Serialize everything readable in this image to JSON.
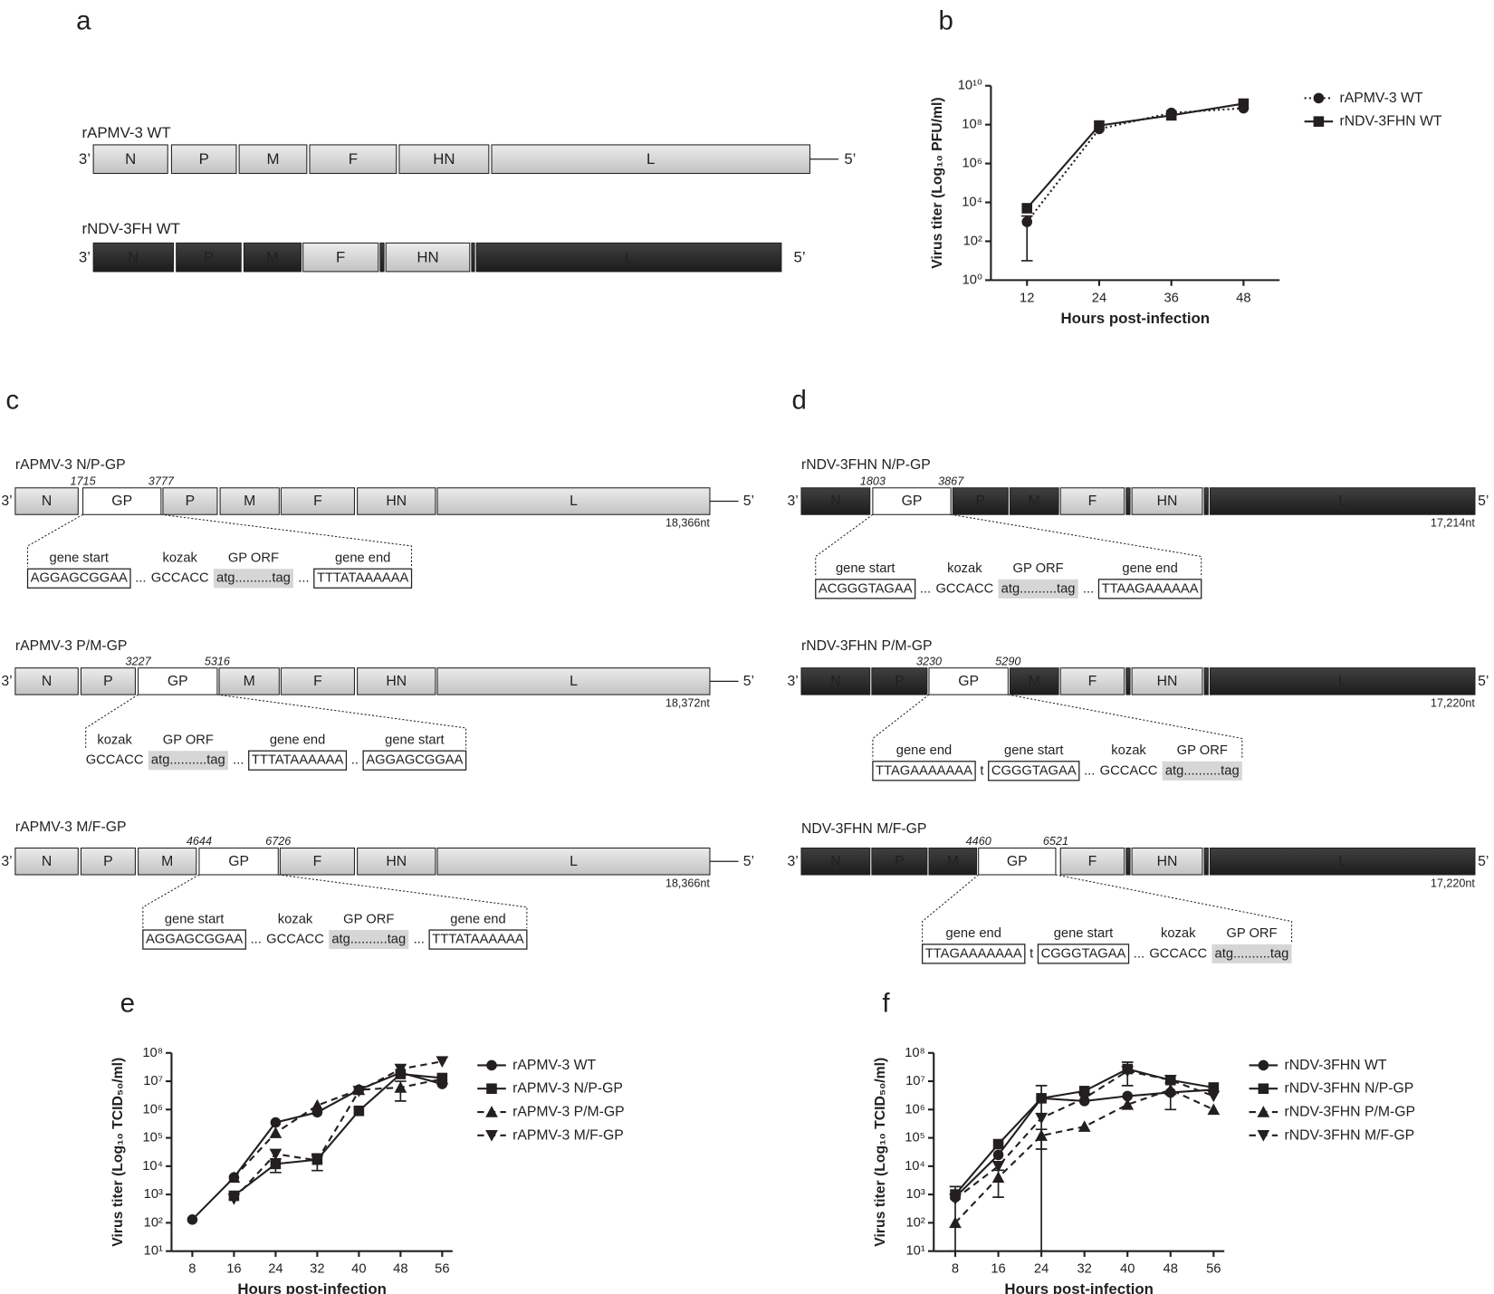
{
  "panels": [
    "a",
    "b",
    "c",
    "d",
    "e",
    "f"
  ],
  "genomes": [
    {
      "title": "rAPMV-3 WT",
      "ends": [
        "3’",
        "5’"
      ],
      "segments": [
        {
          "label": "N",
          "shade": "light"
        },
        {
          "label": "P",
          "shade": "light"
        },
        {
          "label": "M",
          "shade": "light"
        },
        {
          "label": "F",
          "shade": "light"
        },
        {
          "label": "HN",
          "shade": "light"
        },
        {
          "label": "L",
          "shade": "light"
        }
      ]
    },
    {
      "title": "rNDV-3FH WT",
      "ends": [
        "3’",
        "5’"
      ],
      "segments": [
        {
          "label": "N",
          "shade": "dark"
        },
        {
          "label": "P",
          "shade": "dark"
        },
        {
          "label": "M",
          "shade": "dark"
        },
        {
          "label": "F",
          "shade": "light"
        },
        {
          "shade": "junction"
        },
        {
          "label": "HN",
          "shade": "light"
        },
        {
          "shade": "junction"
        },
        {
          "label": "L",
          "shade": "dark"
        }
      ]
    },
    {
      "title": "rAPMV-3 N/P-GP",
      "ends": [
        "3’",
        "5’"
      ],
      "positions": [
        1715,
        3777
      ],
      "length": "18,366nt",
      "segments": [
        {
          "label": "N",
          "shade": "light"
        },
        {
          "label": "GP",
          "shade": "white"
        },
        {
          "label": "P",
          "shade": "light"
        },
        {
          "label": "M",
          "shade": "light"
        },
        {
          "label": "F",
          "shade": "light"
        },
        {
          "label": "HN",
          "shade": "light"
        },
        {
          "label": "L",
          "shade": "light"
        }
      ],
      "callout": [
        {
          "label": "gene start",
          "text": "AGGAGCGGAA",
          "style": "box"
        },
        {
          "text": "...",
          "style": "plain"
        },
        {
          "label": "kozak",
          "text": "GCCACC",
          "style": "plain"
        },
        {
          "label": "GP ORF",
          "text": "atg..........tag",
          "style": "shade"
        },
        {
          "text": "...",
          "style": "plain"
        },
        {
          "label": "gene end",
          "text": "TTTATAAAAAA",
          "style": "box"
        }
      ]
    },
    {
      "title": "rAPMV-3 P/M-GP",
      "ends": [
        "3’",
        "5’"
      ],
      "positions": [
        3227,
        5316
      ],
      "length": "18,372nt",
      "segments": [
        {
          "label": "N",
          "shade": "light"
        },
        {
          "label": "P",
          "shade": "light"
        },
        {
          "label": "GP",
          "shade": "white"
        },
        {
          "label": "M",
          "shade": "light"
        },
        {
          "label": "F",
          "shade": "light"
        },
        {
          "label": "HN",
          "shade": "light"
        },
        {
          "label": "L",
          "shade": "light"
        }
      ],
      "callout": [
        {
          "label": "kozak",
          "text": "GCCACC",
          "style": "plain"
        },
        {
          "label": "GP ORF",
          "text": "atg..........tag",
          "style": "shade"
        },
        {
          "text": "...",
          "style": "plain"
        },
        {
          "label": "gene end",
          "text": "TTTATAAAAAA",
          "style": "box"
        },
        {
          "text": "..",
          "style": "plain"
        },
        {
          "label": "gene start",
          "text": "AGGAGCGGAA",
          "style": "box"
        }
      ]
    },
    {
      "title": "rAPMV-3 M/F-GP",
      "ends": [
        "3’",
        "5’"
      ],
      "positions": [
        4644,
        6726
      ],
      "length": "18,366nt",
      "segments": [
        {
          "label": "N",
          "shade": "light"
        },
        {
          "label": "P",
          "shade": "light"
        },
        {
          "label": "M",
          "shade": "light"
        },
        {
          "label": "GP",
          "shade": "white"
        },
        {
          "label": "F",
          "shade": "light"
        },
        {
          "label": "HN",
          "shade": "light"
        },
        {
          "label": "L",
          "shade": "light"
        }
      ],
      "callout": [
        {
          "label": "gene start",
          "text": "AGGAGCGGAA",
          "style": "box"
        },
        {
          "text": "...",
          "style": "plain"
        },
        {
          "label": "kozak",
          "text": "GCCACC",
          "style": "plain"
        },
        {
          "label": "GP ORF",
          "text": "atg..........tag",
          "style": "shade"
        },
        {
          "text": "...",
          "style": "plain"
        },
        {
          "label": "gene end",
          "text": "TTTATAAAAAA",
          "style": "box"
        }
      ]
    },
    {
      "title": "rNDV-3FHN N/P-GP",
      "ends": [
        "3’",
        "5’"
      ],
      "positions": [
        1803,
        3867
      ],
      "length": "17,214nt",
      "segments": [
        {
          "label": "N",
          "shade": "dark"
        },
        {
          "label": "GP",
          "shade": "white"
        },
        {
          "label": "P",
          "shade": "dark"
        },
        {
          "label": "M",
          "shade": "dark"
        },
        {
          "label": "F",
          "shade": "light"
        },
        {
          "shade": "junction"
        },
        {
          "label": "HN",
          "shade": "light"
        },
        {
          "shade": "junction"
        },
        {
          "label": "L",
          "shade": "dark"
        }
      ],
      "callout": [
        {
          "label": "gene start",
          "text": "ACGGGTAGAA",
          "style": "box"
        },
        {
          "text": "...",
          "style": "plain"
        },
        {
          "label": "kozak",
          "text": "GCCACC",
          "style": "plain"
        },
        {
          "label": "GP ORF",
          "text": "atg..........tag",
          "style": "shade"
        },
        {
          "text": "...",
          "style": "plain"
        },
        {
          "label": "gene end",
          "text": "TTAAGAAAAAA",
          "style": "box"
        }
      ]
    },
    {
      "title": "rNDV-3FHN P/M-GP",
      "ends": [
        "3’",
        "5’"
      ],
      "positions": [
        3230,
        5290
      ],
      "length": "17,220nt",
      "segments": [
        {
          "label": "N",
          "shade": "dark"
        },
        {
          "label": "P",
          "shade": "dark"
        },
        {
          "label": "GP",
          "shade": "white"
        },
        {
          "label": "M",
          "shade": "dark"
        },
        {
          "label": "F",
          "shade": "light"
        },
        {
          "shade": "junction"
        },
        {
          "label": "HN",
          "shade": "light"
        },
        {
          "shade": "junction"
        },
        {
          "label": "L",
          "shade": "dark"
        }
      ],
      "callout": [
        {
          "label": "gene end",
          "text": "TTAGAAAAAAA",
          "style": "box"
        },
        {
          "text": "t",
          "style": "plain"
        },
        {
          "label": "gene start",
          "text": "CGGGTAGAA",
          "style": "box"
        },
        {
          "text": "...",
          "style": "plain"
        },
        {
          "label": "kozak",
          "text": "GCCACC",
          "style": "plain"
        },
        {
          "label": "GP ORF",
          "text": "atg..........tag",
          "style": "shade"
        }
      ]
    },
    {
      "title": "NDV-3FHN M/F-GP",
      "ends": [
        "3’",
        "5’"
      ],
      "positions": [
        4460,
        6521
      ],
      "length": "17,220nt",
      "segments": [
        {
          "label": "N",
          "shade": "dark"
        },
        {
          "label": "P",
          "shade": "dark"
        },
        {
          "label": "M",
          "shade": "dark"
        },
        {
          "label": "GP",
          "shade": "white"
        },
        {
          "label": "F",
          "shade": "light"
        },
        {
          "shade": "junction"
        },
        {
          "label": "HN",
          "shade": "light"
        },
        {
          "shade": "junction"
        },
        {
          "label": "L",
          "shade": "dark"
        }
      ],
      "callout": [
        {
          "label": "gene end",
          "text": "TTAGAAAAAAA",
          "style": "box"
        },
        {
          "text": "t",
          "style": "plain"
        },
        {
          "label": "gene start",
          "text": "CGGGTAGAA",
          "style": "box"
        },
        {
          "text": "...",
          "style": "plain"
        },
        {
          "label": "kozak",
          "text": "GCCACC",
          "style": "plain"
        },
        {
          "label": "GP ORF",
          "text": "atg..........tag",
          "style": "shade"
        }
      ]
    }
  ],
  "chart_data": [
    {
      "type": "line",
      "xlabel": "Hours post-infection",
      "ylabel": "Virus titer (Log₁₀ PFU/ml)",
      "x": [
        12,
        24,
        36,
        48
      ],
      "xlim": [
        6,
        54
      ],
      "xticks": [
        12,
        24,
        36,
        48
      ],
      "ylim": [
        1,
        10000000000
      ],
      "log_y": true,
      "yticks": [
        {
          "value": 1,
          "label": "10⁰"
        },
        {
          "value": 100,
          "label": "10²"
        },
        {
          "value": 10000,
          "label": "10⁴"
        },
        {
          "value": 1000000,
          "label": "10⁶"
        },
        {
          "value": 100000000,
          "label": "10⁸"
        },
        {
          "value": 10000000000,
          "label": "10¹⁰"
        }
      ],
      "legend": "right",
      "series": [
        {
          "name": "rAPMV-3 WT",
          "color": "#231f20",
          "marker": "circle",
          "dash": "dotted",
          "values": [
            1000,
            60000000,
            400000000,
            700000000
          ],
          "errors": [
            990,
            null,
            null,
            null
          ]
        },
        {
          "name": "rNDV-3FHN WT",
          "color": "#231f20",
          "marker": "square",
          "dash": "solid",
          "values": [
            5000,
            90000000,
            300000000,
            1200000000
          ]
        }
      ]
    },
    {
      "type": "line",
      "xlabel": "Hours post-infection",
      "ylabel": "Virus titer (Log₁₀ TCID₅₀/ml)",
      "x": [
        8,
        16,
        24,
        32,
        40,
        48,
        56
      ],
      "xlim": [
        4,
        58
      ],
      "xticks": [
        8,
        16,
        24,
        32,
        40,
        48,
        56
      ],
      "ylim": [
        10,
        100000000
      ],
      "log_y": true,
      "yticks": [
        {
          "value": 10,
          "label": "10¹"
        },
        {
          "value": 100,
          "label": "10²"
        },
        {
          "value": 1000,
          "label": "10³"
        },
        {
          "value": 10000,
          "label": "10⁴"
        },
        {
          "value": 100000,
          "label": "10⁵"
        },
        {
          "value": 1000000,
          "label": "10⁶"
        },
        {
          "value": 10000000,
          "label": "10⁷"
        },
        {
          "value": 100000000,
          "label": "10⁸"
        }
      ],
      "legend": "right",
      "series": [
        {
          "name": "rAPMV-3 WT",
          "color": "#231f20",
          "marker": "circle",
          "dash": "solid",
          "values": [
            130,
            4000,
            350000,
            800000,
            5000000,
            20000000,
            8000000
          ]
        },
        {
          "name": "rAPMV-3 N/P-GP",
          "color": "#231f20",
          "marker": "square",
          "dash": "solid",
          "values": [
            null,
            900,
            12000,
            17000,
            900000,
            18000000,
            13000000
          ],
          "errors": [
            null,
            null,
            6000,
            10000,
            null,
            null,
            null
          ]
        },
        {
          "name": "rAPMV-3 P/M-GP",
          "color": "#231f20",
          "marker": "triangle-up",
          "dash": "dashed",
          "values": [
            null,
            4000,
            150000,
            1400000,
            5000000,
            6000000,
            12000000
          ],
          "errors": [
            null,
            null,
            null,
            null,
            null,
            4000000,
            null
          ]
        },
        {
          "name": "rAPMV-3 M/F-GP",
          "color": "#231f20",
          "marker": "triangle-down",
          "dash": "dashed",
          "values": [
            null,
            700,
            27000,
            16000,
            4500000,
            27000000,
            50000000
          ]
        }
      ]
    },
    {
      "type": "line",
      "xlabel": "Hours post-infection",
      "ylabel": "Virus titer (Log₁₀ TCID₅₀/ml)",
      "x": [
        8,
        16,
        24,
        32,
        40,
        48,
        56
      ],
      "xlim": [
        4,
        58
      ],
      "xticks": [
        8,
        16,
        24,
        32,
        40,
        48,
        56
      ],
      "ylim": [
        10,
        100000000
      ],
      "log_y": true,
      "yticks": [
        {
          "value": 10,
          "label": "10¹"
        },
        {
          "value": 100,
          "label": "10²"
        },
        {
          "value": 1000,
          "label": "10³"
        },
        {
          "value": 10000,
          "label": "10⁴"
        },
        {
          "value": 100000,
          "label": "10⁵"
        },
        {
          "value": 1000000,
          "label": "10⁶"
        },
        {
          "value": 10000000,
          "label": "10⁷"
        },
        {
          "value": 100000000,
          "label": "10⁸"
        }
      ],
      "legend": "right",
      "series": [
        {
          "name": "rNDV-3FHN WT",
          "color": "#231f20",
          "marker": "circle",
          "dash": "solid",
          "values": [
            800,
            25000,
            2500000,
            2000000,
            3000000,
            4000000,
            5000000
          ],
          "errors": [
            null,
            null,
            4500000,
            null,
            null,
            null,
            null
          ]
        },
        {
          "name": "rNDV-3FHN N/P-GP",
          "color": "#231f20",
          "marker": "square",
          "dash": "solid",
          "values": [
            1000,
            60000,
            2500000,
            4500000,
            27000000,
            11000000,
            6000000
          ],
          "errors": [
            null,
            null,
            null,
            null,
            20000000,
            null,
            null
          ]
        },
        {
          "name": "rNDV-3FHN P/M-GP",
          "color": "#231f20",
          "marker": "triangle-up",
          "dash": "dashed",
          "values": [
            100,
            4000,
            120000,
            250000,
            1500000,
            5000000,
            1000000
          ],
          "errors": [
            null,
            3200,
            80000,
            null,
            null,
            4000000,
            null
          ]
        },
        {
          "name": "rNDV-3FHN M/F-GP",
          "color": "#231f20",
          "marker": "triangle-down",
          "dash": "dashed",
          "values": [
            700,
            10000,
            500000,
            2500000,
            23000000,
            11000000,
            3000000
          ],
          "errors": [
            1200,
            null,
            null,
            null,
            null,
            null,
            null
          ]
        }
      ]
    }
  ]
}
